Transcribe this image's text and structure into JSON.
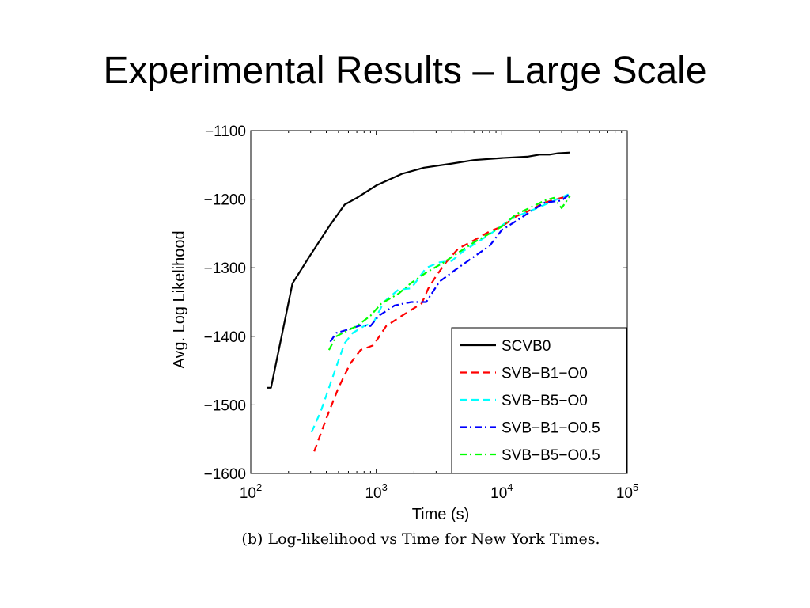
{
  "slide": {
    "title": "Experimental Results – Large Scale",
    "caption": "(b) Log-likelihood vs Time for New York Times."
  },
  "chart_data": {
    "type": "line",
    "title": "",
    "xlabel": "Time (s)",
    "ylabel": "Avg. Log Likelihood",
    "xscale": "log",
    "xlim": [
      100,
      100000
    ],
    "ylim": [
      -1600,
      -1100
    ],
    "xticks": [
      {
        "value": 100,
        "base": "10",
        "exp": "2"
      },
      {
        "value": 1000,
        "base": "10",
        "exp": "3"
      },
      {
        "value": 10000,
        "base": "10",
        "exp": "4"
      },
      {
        "value": 100000,
        "base": "10",
        "exp": "5"
      }
    ],
    "yticks": [
      {
        "value": -1100,
        "label": "−1100"
      },
      {
        "value": -1200,
        "label": "−1200"
      },
      {
        "value": -1300,
        "label": "−1300"
      },
      {
        "value": -1400,
        "label": "−1400"
      },
      {
        "value": -1500,
        "label": "−1500"
      },
      {
        "value": -1600,
        "label": "−1600"
      }
    ],
    "grid": false,
    "legend_position": "bottom-right",
    "series": [
      {
        "name": "SCVB0",
        "color": "#000000",
        "dash": "solid",
        "points": [
          [
            135,
            -1475
          ],
          [
            145,
            -1475
          ],
          [
            215,
            -1323
          ],
          [
            290,
            -1285
          ],
          [
            420,
            -1240
          ],
          [
            560,
            -1208
          ],
          [
            700,
            -1198
          ],
          [
            1000,
            -1180
          ],
          [
            1600,
            -1163
          ],
          [
            2400,
            -1154
          ],
          [
            4000,
            -1148
          ],
          [
            6000,
            -1143
          ],
          [
            10000,
            -1140
          ],
          [
            16000,
            -1138
          ],
          [
            20000,
            -1135
          ],
          [
            24000,
            -1135
          ],
          [
            28000,
            -1133
          ],
          [
            35000,
            -1132
          ]
        ]
      },
      {
        "name": "SVB−B1−O0",
        "color": "#ff0000",
        "dash": "dash",
        "points": [
          [
            320,
            -1568
          ],
          [
            400,
            -1520
          ],
          [
            500,
            -1475
          ],
          [
            620,
            -1440
          ],
          [
            750,
            -1420
          ],
          [
            950,
            -1413
          ],
          [
            1200,
            -1385
          ],
          [
            1600,
            -1370
          ],
          [
            2300,
            -1352
          ],
          [
            2600,
            -1330
          ],
          [
            3000,
            -1312
          ],
          [
            3600,
            -1292
          ],
          [
            4500,
            -1272
          ],
          [
            6000,
            -1260
          ],
          [
            8000,
            -1247
          ],
          [
            10000,
            -1240
          ],
          [
            13000,
            -1225
          ],
          [
            16000,
            -1218
          ],
          [
            22000,
            -1205
          ],
          [
            34000,
            -1195
          ]
        ]
      },
      {
        "name": "SVB−B5−O0",
        "color": "#00ffff",
        "dash": "dash",
        "points": [
          [
            305,
            -1540
          ],
          [
            360,
            -1510
          ],
          [
            420,
            -1475
          ],
          [
            490,
            -1440
          ],
          [
            560,
            -1410
          ],
          [
            650,
            -1395
          ],
          [
            800,
            -1385
          ],
          [
            950,
            -1380
          ],
          [
            1150,
            -1350
          ],
          [
            1500,
            -1332
          ],
          [
            1900,
            -1330
          ],
          [
            2500,
            -1300
          ],
          [
            3200,
            -1292
          ],
          [
            4000,
            -1290
          ],
          [
            5000,
            -1275
          ],
          [
            6500,
            -1262
          ],
          [
            8500,
            -1248
          ],
          [
            12000,
            -1228
          ],
          [
            18000,
            -1215
          ],
          [
            34000,
            -1193
          ]
        ]
      },
      {
        "name": "SVB−B1−O0.5",
        "color": "#0000ff",
        "dash": "dashdot",
        "points": [
          [
            430,
            -1408
          ],
          [
            480,
            -1395
          ],
          [
            600,
            -1390
          ],
          [
            750,
            -1384
          ],
          [
            900,
            -1385
          ],
          [
            1050,
            -1370
          ],
          [
            1400,
            -1355
          ],
          [
            1900,
            -1350
          ],
          [
            2500,
            -1350
          ],
          [
            3200,
            -1320
          ],
          [
            4500,
            -1300
          ],
          [
            6000,
            -1284
          ],
          [
            8000,
            -1268
          ],
          [
            10000,
            -1245
          ],
          [
            13000,
            -1232
          ],
          [
            17000,
            -1218
          ],
          [
            22000,
            -1205
          ],
          [
            30000,
            -1202
          ],
          [
            35000,
            -1192
          ]
        ]
      },
      {
        "name": "SVB−B5−O0.5",
        "color": "#00ff00",
        "dash": "dashdot",
        "points": [
          [
            420,
            -1420
          ],
          [
            480,
            -1400
          ],
          [
            570,
            -1393
          ],
          [
            700,
            -1385
          ],
          [
            900,
            -1370
          ],
          [
            1100,
            -1352
          ],
          [
            1500,
            -1338
          ],
          [
            1900,
            -1322
          ],
          [
            2500,
            -1307
          ],
          [
            3400,
            -1293
          ],
          [
            4500,
            -1278
          ],
          [
            6000,
            -1263
          ],
          [
            8000,
            -1250
          ],
          [
            10000,
            -1240
          ],
          [
            13000,
            -1222
          ],
          [
            17000,
            -1212
          ],
          [
            22000,
            -1202
          ],
          [
            26000,
            -1198
          ],
          [
            30000,
            -1213
          ],
          [
            35000,
            -1195
          ]
        ]
      }
    ]
  }
}
